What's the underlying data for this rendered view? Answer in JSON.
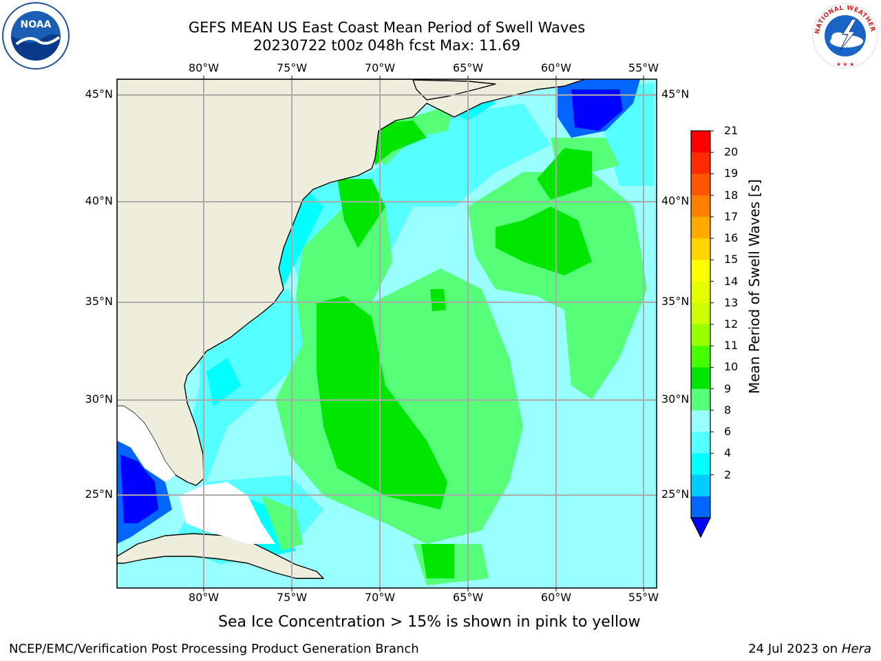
{
  "header": {
    "title_line1": "GEFS MEAN US East Coast Mean Period of Swell Waves",
    "title_line2": "20230722 t00z 048h fcst   Max: 11.69"
  },
  "logos": {
    "left": "noaa-logo",
    "right": "national-weather-service-logo",
    "noaa_text": "NOAA",
    "nws_ring_text": "NATIONAL WEATHER SERVICE"
  },
  "map": {
    "longitude_labels": [
      "80°W",
      "75°W",
      "70°W",
      "65°W",
      "60°W",
      "55°W"
    ],
    "latitude_labels": [
      "45°N",
      "40°N",
      "35°N",
      "30°N",
      "25°N"
    ],
    "colors": {
      "land": "#eeeedd",
      "gridlines": "#aaaaaa",
      "coast": "#000000"
    }
  },
  "colorbar": {
    "title": "Mean Period of Swell Waves [s]",
    "ticks": [
      "21",
      "20",
      "19",
      "18",
      "17",
      "16",
      "15",
      "14",
      "13",
      "12",
      "11",
      "10",
      "9",
      "8",
      "6",
      "4",
      "2"
    ],
    "colors": [
      "#ff0000",
      "#ff2a00",
      "#ff5500",
      "#ff7f00",
      "#ffaa00",
      "#ffd400",
      "#ffff00",
      "#e5ff00",
      "#ccff00",
      "#99ff00",
      "#44ff00",
      "#00e600",
      "#55ff77",
      "#99ffff",
      "#55ffff",
      "#00ffff",
      "#00ccff",
      "#0066ff",
      "#0000ff"
    ]
  },
  "subtitle": "Sea Ice Concentration > 15% is shown in pink to yellow",
  "footer": {
    "left": "NCEP/EMC/Verification Post Processing Product Generation Branch",
    "right_date": "24 Jul 2023 on ",
    "right_machine": "Hera"
  }
}
